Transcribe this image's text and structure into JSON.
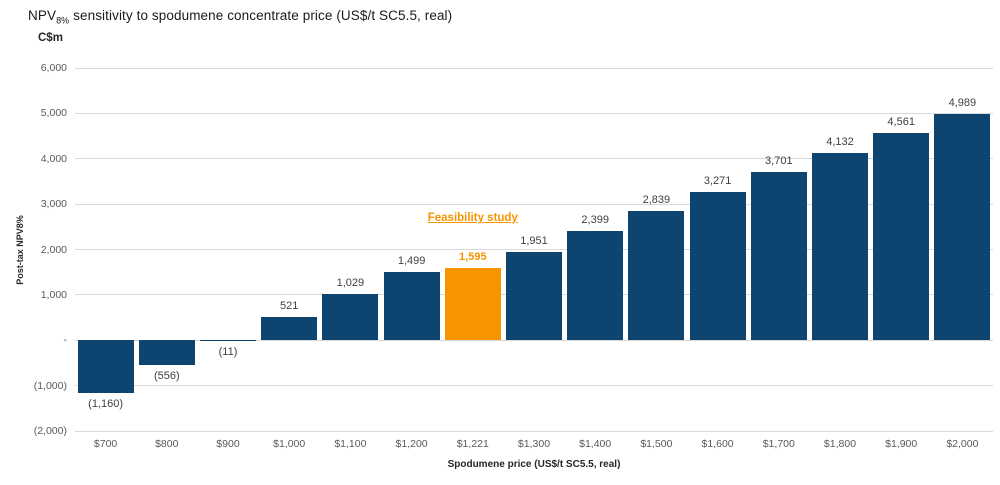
{
  "title": {
    "prefix": "NPV",
    "subscript": "8%",
    "rest": " sensitivity to spodumene concentrate price (US$/t SC5.5, real)"
  },
  "y_axis": {
    "unit": "C$m",
    "title": "Post-tax NPV8%",
    "ticks": [
      {
        "value": 6000,
        "label": "6,000"
      },
      {
        "value": 5000,
        "label": "5,000"
      },
      {
        "value": 4000,
        "label": "4,000"
      },
      {
        "value": 3000,
        "label": "3,000"
      },
      {
        "value": 2000,
        "label": "2,000"
      },
      {
        "value": 1000,
        "label": "1,000"
      },
      {
        "value": 0,
        "label": "-"
      },
      {
        "value": -1000,
        "label": "(1,000)"
      },
      {
        "value": -2000,
        "label": "(2,000)"
      }
    ]
  },
  "x_axis": {
    "title": "Spodumene price (US$/t SC5.5, real)"
  },
  "annotation": {
    "text": "Feasibility study"
  },
  "colors": {
    "bar": "#0d4570",
    "highlight": "#f79500",
    "gridline": "#d9d9d9",
    "value_label": "#404040",
    "tick_label": "#595959"
  },
  "chart_data": {
    "type": "bar",
    "title": "NPV8% sensitivity to spodumene concentrate price (US$/t SC5.5, real)",
    "xlabel": "Spodumene price (US$/t SC5.5, real)",
    "ylabel": "Post-tax NPV8% (C$m)",
    "ylim": [
      -2000,
      6000
    ],
    "grid": true,
    "legend": false,
    "categories": [
      "$700",
      "$800",
      "$900",
      "$1,000",
      "$1,100",
      "$1,200",
      "$1,221",
      "$1,300",
      "$1,400",
      "$1,500",
      "$1,600",
      "$1,700",
      "$1,800",
      "$1,900",
      "$2,000"
    ],
    "values": [
      -1160,
      -556,
      -11,
      521,
      1029,
      1499,
      1595,
      1951,
      2399,
      2839,
      3271,
      3701,
      4132,
      4561,
      4989
    ],
    "value_labels": [
      "(1,160)",
      "(556)",
      "(11)",
      "521",
      "1,029",
      "1,499",
      "1,595",
      "1,951",
      "2,399",
      "2,839",
      "3,271",
      "3,701",
      "4,132",
      "4,561",
      "4,989"
    ],
    "highlight_index": 6,
    "highlight_annotation": "Feasibility study"
  }
}
